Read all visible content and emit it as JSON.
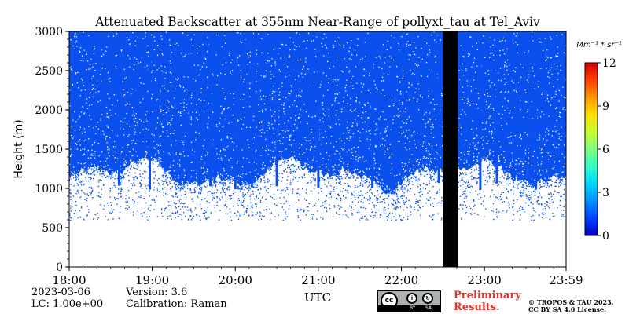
{
  "chart_data": {
    "type": "heatmap",
    "title": "Attenuated Backscatter at 355nm Near-Range of pollyxt_tau at Tel_Aviv",
    "xlabel": "UTC",
    "ylabel": "Height (m)",
    "x_ticks": [
      "18:00",
      "19:00",
      "20:00",
      "21:00",
      "22:00",
      "23:00",
      "23:59"
    ],
    "x_tick_hours": [
      18,
      19,
      20,
      21,
      22,
      23,
      23.983
    ],
    "xlim_hours": [
      18,
      23.983
    ],
    "y_ticks": [
      0,
      500,
      1000,
      1500,
      2000,
      2500,
      3000
    ],
    "ylim": [
      0,
      3000
    ],
    "colorbar": {
      "unit_label": "Mm⁻¹ * sr⁻¹",
      "range": [
        0,
        12
      ],
      "ticks": [
        0,
        3,
        6,
        9,
        12
      ],
      "colors": [
        "#0000c8",
        "#0040ff",
        "#0090ff",
        "#00d8ff",
        "#30ffc8",
        "#80ff80",
        "#c8ff30",
        "#ffe000",
        "#ff9800",
        "#ff4000",
        "#d80000"
      ]
    },
    "signal": {
      "dominant_value_range": [
        0,
        0.5
      ],
      "signal_color": "#0a50ee",
      "approx_lower_limit_m": 1000,
      "vertical_streak_hours": [
        18.6,
        18.97,
        19.45,
        19.7,
        19.75,
        20.0,
        20.2,
        20.5,
        21.0,
        21.65,
        22.45,
        22.95,
        23.15,
        23.55,
        23.62
      ],
      "no_data_interval_hours": [
        22.5,
        22.68
      ],
      "no_data_color": "#000000"
    }
  },
  "info": {
    "date": "2023-03-06",
    "lc": "LC: 1.00e+00",
    "version": "Version: 3.6",
    "calibration": "Calibration: Raman"
  },
  "license": {
    "badge_cc": "cc",
    "badge_by": "BY",
    "badge_sa": "SA",
    "preliminary_line1": "Preliminary",
    "preliminary_line2": "Results.",
    "copyright_line1": "© TROPOS & TAU 2023.",
    "copyright_line2": "CC BY SA 4.0 License."
  }
}
